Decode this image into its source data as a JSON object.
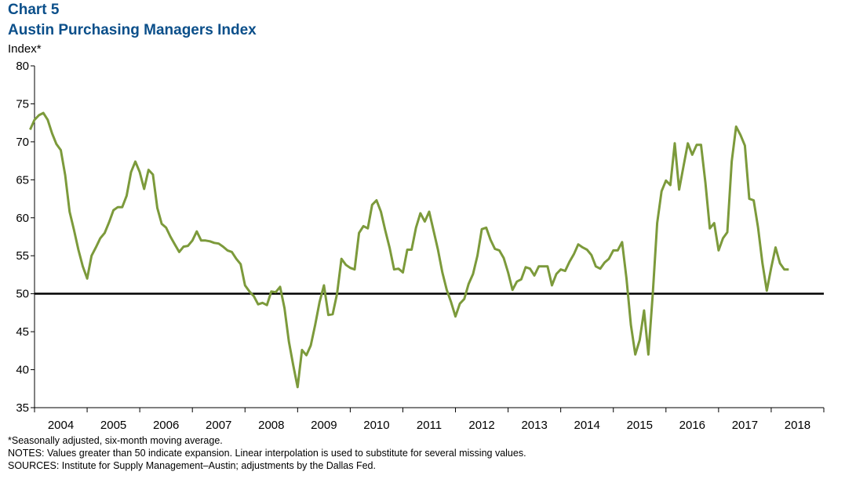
{
  "header": {
    "chart_number": "Chart 5",
    "title": "Austin Purchasing Managers Index",
    "y_unit": "Index*"
  },
  "notes": {
    "footnote": "*Seasonally adjusted, six-month moving average.",
    "notes": "NOTES:  Values greater than 50 indicate expansion. Linear interpolation is used to substitute for several missing values.",
    "sources": "SOURCES:  Institute for Supply Management–Austin;  adjustments by the Dallas Fed."
  },
  "colors": {
    "series": "#7c9a3b",
    "reference_line": "#000000",
    "title": "#0b4f8a"
  },
  "chart_data": {
    "type": "line",
    "title": "Austin Purchasing Managers Index",
    "ylabel": "Index*",
    "xlabel": "",
    "ylim": [
      35,
      80
    ],
    "yticks": [
      35,
      40,
      45,
      50,
      55,
      60,
      65,
      70,
      75,
      80
    ],
    "xlim": [
      2003.5,
      2018.5
    ],
    "xtick_labels": [
      "2004",
      "2005",
      "2006",
      "2007",
      "2008",
      "2009",
      "2010",
      "2011",
      "2012",
      "2013",
      "2014",
      "2015",
      "2016",
      "2017",
      "2018"
    ],
    "reference_line": 50,
    "grid": false,
    "legend": "none",
    "series": [
      {
        "start": "2003-06",
        "frequency": "monthly",
        "values": [
          71.6,
          72.9,
          73.5,
          73.8,
          72.9,
          71.1,
          69.7,
          68.9,
          65.6,
          60.8,
          58.4,
          55.8,
          53.6,
          52.0,
          55.0,
          56.1,
          57.3,
          58.0,
          59.4,
          61.0,
          61.4,
          61.4,
          62.9,
          66.0,
          67.4,
          66.0,
          63.8,
          66.3,
          65.7,
          61.3,
          59.2,
          58.7,
          57.5,
          56.5,
          55.5,
          56.2,
          56.3,
          57.0,
          58.2,
          57.0,
          57.0,
          56.9,
          56.7,
          56.6,
          56.2,
          55.7,
          55.5,
          54.6,
          53.9,
          51.1,
          50.3,
          49.7,
          48.6,
          48.8,
          48.5,
          50.3,
          50.2,
          50.9,
          48.1,
          43.7,
          40.6,
          37.7,
          42.6,
          41.9,
          43.2,
          45.9,
          48.9,
          51.1,
          47.2,
          47.3,
          50.0,
          54.6,
          53.8,
          53.4,
          53.2,
          58.0,
          58.9,
          58.6,
          61.7,
          62.3,
          60.8,
          58.3,
          56.0,
          53.2,
          53.3,
          52.8,
          55.8,
          55.8,
          58.7,
          60.6,
          59.5,
          60.8,
          58.3,
          55.8,
          52.8,
          50.5,
          48.9,
          47.0,
          48.7,
          49.3,
          51.3,
          52.6,
          55.0,
          58.5,
          58.7,
          57.1,
          55.9,
          55.7,
          54.7,
          52.8,
          50.5,
          51.6,
          51.9,
          53.5,
          53.3,
          52.4,
          53.6,
          53.6,
          53.6,
          51.1,
          52.6,
          53.2,
          53.0,
          54.2,
          55.2,
          56.5,
          56.1,
          55.8,
          55.1,
          53.6,
          53.3,
          54.1,
          54.6,
          55.7,
          55.7,
          56.8,
          52.0,
          45.9,
          42.0,
          43.9,
          47.8,
          42.0,
          50.0,
          59.3,
          63.5,
          64.9,
          64.3,
          69.8,
          63.7,
          66.8,
          69.8,
          68.3,
          69.6,
          69.6,
          64.6,
          58.6,
          59.3,
          55.7,
          57.3,
          58.1,
          67.4,
          72.0,
          70.9,
          69.5,
          62.5,
          62.3,
          58.7,
          54.0,
          50.4,
          53.4,
          56.1,
          54.0,
          53.2,
          53.2
        ]
      }
    ]
  }
}
